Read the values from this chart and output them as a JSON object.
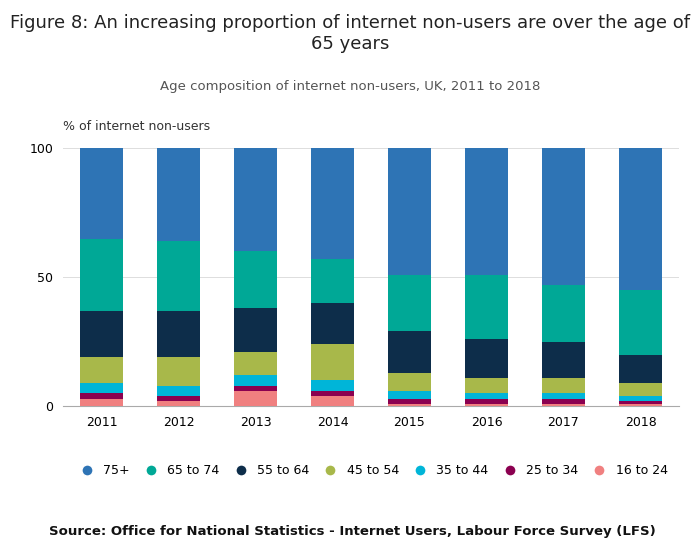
{
  "title": "Figure 8: An increasing proportion of internet non-users are over the age of\n65 years",
  "subtitle": "Age composition of internet non-users, UK, 2011 to 2018",
  "ylabel": "% of internet non-users",
  "source": "Source: Office for National Statistics - Internet Users, Labour Force Survey (LFS)",
  "years": [
    2011,
    2012,
    2013,
    2014,
    2015,
    2016,
    2017,
    2018
  ],
  "categories": [
    "75+",
    "65 to 74",
    "55 to 64",
    "45 to 54",
    "35 to 44",
    "25 to 34",
    "16 to 24"
  ],
  "colors": [
    "#2e74b5",
    "#00a896",
    "#0d2d4a",
    "#a8b84a",
    "#00b5d8",
    "#8b0050",
    "#f08080"
  ],
  "data": {
    "75+": [
      35,
      36,
      40,
      43,
      49,
      49,
      53,
      55
    ],
    "65 to 74": [
      28,
      27,
      22,
      17,
      22,
      25,
      22,
      25
    ],
    "55 to 64": [
      18,
      18,
      17,
      16,
      16,
      15,
      14,
      11
    ],
    "45 to 54": [
      10,
      11,
      9,
      14,
      7,
      6,
      6,
      5
    ],
    "35 to 44": [
      4,
      4,
      4,
      4,
      3,
      2,
      2,
      2
    ],
    "25 to 34": [
      2,
      2,
      2,
      2,
      2,
      2,
      2,
      1
    ],
    "16 to 24": [
      3,
      2,
      6,
      4,
      1,
      1,
      1,
      1
    ]
  },
  "ylim": [
    0,
    100
  ],
  "background_color": "#ffffff",
  "title_fontsize": 13,
  "subtitle_fontsize": 9.5,
  "axis_fontsize": 9,
  "legend_fontsize": 9,
  "source_fontsize": 9.5
}
